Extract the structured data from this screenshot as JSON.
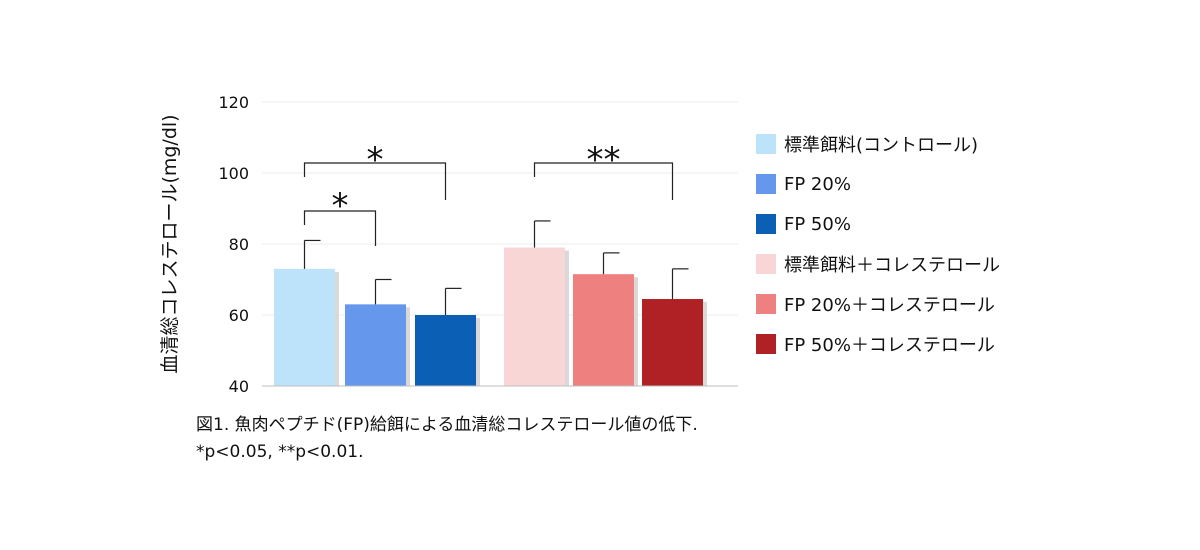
{
  "chart_data": {
    "type": "bar",
    "ylabel": "血清総コレステロール(mg/dl)",
    "ylim": [
      40,
      120
    ],
    "yticks": [
      40,
      60,
      80,
      100,
      120
    ],
    "grid": true,
    "legend_position": "right",
    "series": [
      {
        "name": "標準餌料(コントロール)",
        "value": 73,
        "error": 8,
        "color": "#bde3fb"
      },
      {
        "name": "FP 20%",
        "value": 63,
        "error": 7,
        "color": "#6597ec"
      },
      {
        "name": "FP 50%",
        "value": 60,
        "error": 7.5,
        "color": "#0b5fb5"
      },
      {
        "name": "標準餌料＋コレステロール",
        "value": 79,
        "error": 7.5,
        "color": "#f9d6d6"
      },
      {
        "name": "FP 20%＋コレステロール",
        "value": 71.5,
        "error": 6,
        "color": "#ee8080"
      },
      {
        "name": "FP 50%＋コレステロール",
        "value": 64.5,
        "error": 8.5,
        "color": "#b02125"
      }
    ],
    "significance": [
      {
        "from": 0,
        "to": 1,
        "label": "*"
      },
      {
        "from": 0,
        "to": 2,
        "label": "*"
      },
      {
        "from": 3,
        "to": 5,
        "label": "**"
      }
    ]
  },
  "caption": {
    "line1": "図1. 魚肉ペプチド(FP)給餌による血清総コレステロール値の低下.",
    "line2": "*p<0.05, **p<0.01."
  }
}
